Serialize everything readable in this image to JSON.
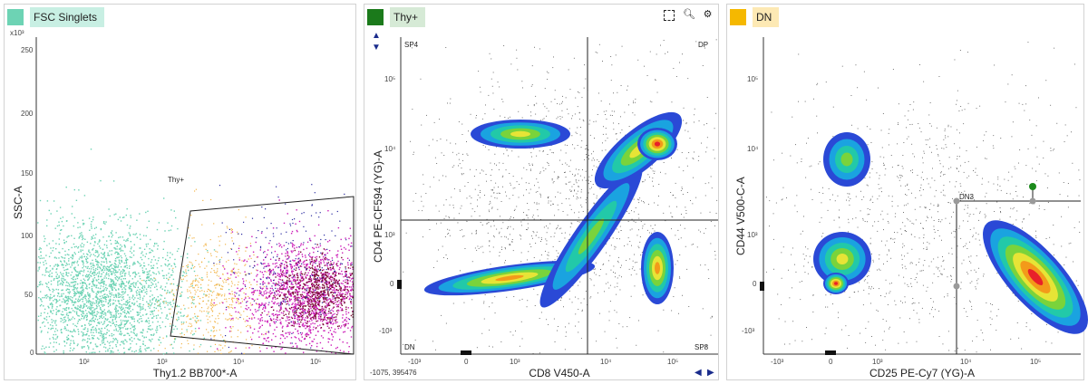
{
  "panels": [
    {
      "tab_label": "FSC Singlets",
      "tab_color": "#6dd3b4",
      "x_axis_title": "Thy1.2 BB700*-A",
      "y_axis_title": "SSC-A",
      "y_exponent_label": "x10³",
      "x_ticks": [
        "10²",
        "10⁴",
        "10⁵"
      ],
      "x_tick_1e3": "10³",
      "y_ticks": [
        "0",
        "50",
        "100",
        "150",
        "200",
        "250"
      ],
      "gate_label": "Thy+"
    },
    {
      "tab_label": "Thy+",
      "tab_color": "#1b7a1b",
      "x_axis_title": "CD8 V450-A",
      "y_axis_title": "CD4 PE-CF594 (YG)-A",
      "x_ticks": [
        "-10³",
        "0",
        "10³",
        "10⁴",
        "10⁵"
      ],
      "y_ticks": [
        "10⁵",
        "10⁴",
        "10³",
        "0",
        "-10³"
      ],
      "quadrants": [
        "SP4",
        "DP",
        "DN",
        "SP8"
      ],
      "cursor_readout": "-1075, 395476",
      "tools": [
        "select-icon",
        "zoom-icon",
        "gear-icon"
      ]
    },
    {
      "tab_label": "DN",
      "tab_color": "#f5b800",
      "x_axis_title": "CD25 PE-Cy7 (YG)-A",
      "y_axis_title": "CD44 V500-C-A",
      "x_ticks": [
        "-10³",
        "0",
        "10³",
        "10⁴",
        "10⁵"
      ],
      "y_ticks": [
        "10⁵",
        "10⁴",
        "10³",
        "0",
        "-10³"
      ],
      "gate_label": "DN3"
    }
  ],
  "colors": {
    "tab_bg_teal": "#c8efe3",
    "tab_bg_green": "#d6ead6",
    "tab_bg_orange": "#fde9b4",
    "teal_dots": "#6dd3b4",
    "magenta_dots": "#cc1fb8",
    "navy_arrow": "#1a2c8c"
  }
}
